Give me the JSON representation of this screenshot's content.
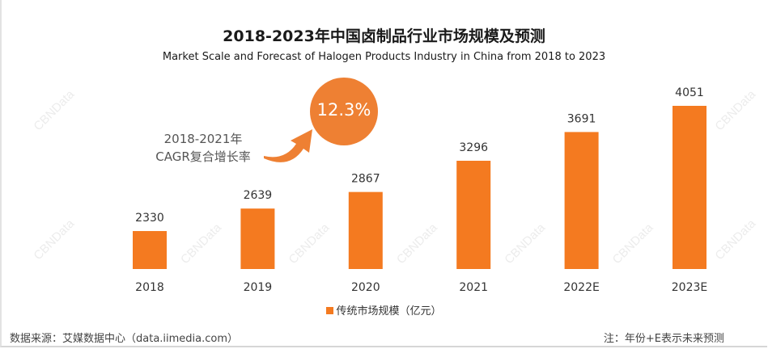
{
  "title": "2018-2023年中国卤制品行业市场规模及预测",
  "subtitle": "Market Scale and Forecast of Halogen Products Industry in China from 2018  to 2023",
  "annotation": {
    "cagr_label_line1": "2018-2021年",
    "cagr_label_line2": "CAGR复合增长率",
    "cagr_value": "12.3%"
  },
  "watermark": "CBNData",
  "legend": {
    "label": "传统市场规模（亿元）"
  },
  "footer": {
    "source": "数据来源：艾媒数据中心（data.iimedia.com）",
    "note": "注：年份+E表示未来预测"
  },
  "colors": {
    "bar": "#f47a20",
    "circle": "#ee8033",
    "arrow": "#ee8033"
  },
  "chart_data": {
    "type": "bar",
    "title": "2018-2023年中国卤制品行业市场规模及预测",
    "subtitle": "Market Scale and Forecast of Halogen Products Industry in China from 2018  to 2023",
    "categories": [
      "2018",
      "2019",
      "2020",
      "2021",
      "2022E",
      "2023E"
    ],
    "series": [
      {
        "name": "传统市场规模（亿元）",
        "values": [
          2330,
          2639,
          2867,
          3296,
          3691,
          4051
        ]
      }
    ],
    "data_labels": [
      "2330",
      "2639",
      "2867",
      "3296",
      "3691",
      "4051"
    ],
    "xlabel": "",
    "ylabel": "",
    "ylim": [
      1808,
      4300
    ],
    "grid": false,
    "legend_position": "bottom-center"
  }
}
